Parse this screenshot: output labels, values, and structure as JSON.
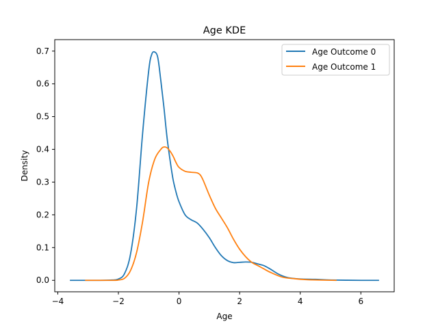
{
  "chart_data": {
    "type": "line",
    "title": "Age KDE",
    "xlabel": "Age",
    "ylabel": "Density",
    "xlim": [
      -4.1,
      7.1
    ],
    "ylim": [
      -0.035,
      0.735
    ],
    "xticks": [
      -4,
      -2,
      0,
      2,
      4,
      6
    ],
    "xtick_labels": [
      "−4",
      "−2",
      "0",
      "2",
      "4",
      "6"
    ],
    "yticks": [
      0.0,
      0.1,
      0.2,
      0.3,
      0.4,
      0.5,
      0.6,
      0.7
    ],
    "ytick_labels": [
      "0.0",
      "0.1",
      "0.2",
      "0.3",
      "0.4",
      "0.5",
      "0.6",
      "0.7"
    ],
    "grid": false,
    "legend_position": "top-right",
    "series": [
      {
        "name": "Age Outcome 0",
        "color": "#1f77b4",
        "x": [
          -3.6,
          -2.6,
          -2.2,
          -2.0,
          -1.8,
          -1.6,
          -1.4,
          -1.2,
          -1.0,
          -0.9,
          -0.8,
          -0.7,
          -0.6,
          -0.5,
          -0.4,
          -0.3,
          -0.2,
          -0.1,
          0.0,
          0.2,
          0.4,
          0.6,
          0.8,
          1.0,
          1.2,
          1.4,
          1.6,
          1.8,
          2.0,
          2.2,
          2.4,
          2.6,
          2.8,
          3.0,
          3.3,
          3.6,
          4.0,
          4.5,
          5.0,
          6.0,
          6.6
        ],
        "y": [
          0.0,
          0.0,
          0.001,
          0.004,
          0.02,
          0.08,
          0.22,
          0.45,
          0.64,
          0.69,
          0.697,
          0.68,
          0.61,
          0.53,
          0.44,
          0.37,
          0.31,
          0.27,
          0.24,
          0.2,
          0.185,
          0.175,
          0.155,
          0.13,
          0.1,
          0.075,
          0.06,
          0.054,
          0.055,
          0.056,
          0.055,
          0.05,
          0.045,
          0.035,
          0.018,
          0.008,
          0.004,
          0.003,
          0.001,
          0.0,
          0.0
        ]
      },
      {
        "name": "Age Outcome 1",
        "color": "#ff7f0e",
        "x": [
          -3.1,
          -2.2,
          -2.0,
          -1.8,
          -1.6,
          -1.4,
          -1.2,
          -1.0,
          -0.8,
          -0.6,
          -0.5,
          -0.4,
          -0.3,
          -0.2,
          -0.1,
          0.0,
          0.2,
          0.4,
          0.6,
          0.7,
          0.8,
          1.0,
          1.2,
          1.4,
          1.6,
          1.8,
          2.0,
          2.2,
          2.4,
          2.6,
          2.8,
          3.0,
          3.4,
          3.8,
          4.2,
          4.6,
          5.2
        ],
        "y": [
          0.0,
          0.0,
          0.001,
          0.006,
          0.03,
          0.085,
          0.18,
          0.3,
          0.37,
          0.4,
          0.407,
          0.405,
          0.395,
          0.38,
          0.36,
          0.345,
          0.333,
          0.33,
          0.328,
          0.322,
          0.305,
          0.26,
          0.22,
          0.19,
          0.16,
          0.125,
          0.095,
          0.072,
          0.055,
          0.045,
          0.035,
          0.025,
          0.01,
          0.005,
          0.002,
          0.001,
          0.0
        ]
      }
    ]
  }
}
